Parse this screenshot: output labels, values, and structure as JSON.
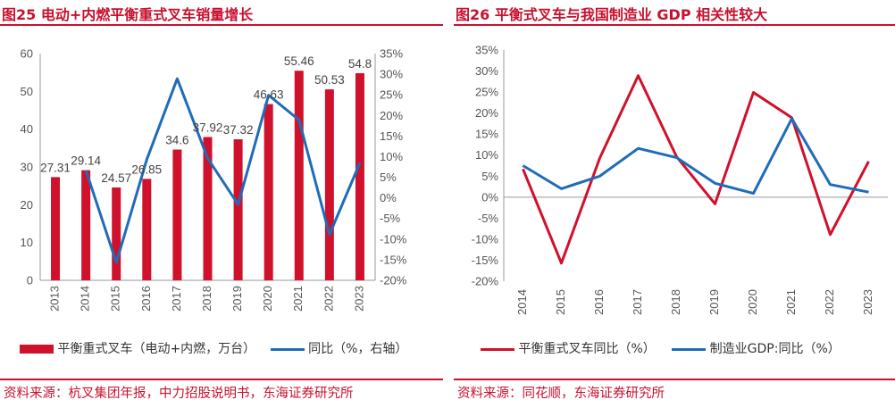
{
  "left": {
    "title": "图25  电动+内燃平衡重式叉车销量增长",
    "source": "资料来源：杭叉集团年报，中力招股说明书，东海证券研究所",
    "legend": [
      "平衡重式叉车（电动+内燃，万台）",
      "同比（%，右轴）"
    ]
  },
  "right": {
    "title": "图26  平衡式叉车与我国制造业 GDP 相关性较大",
    "source": "资料来源：同花顺，东海证券研究所",
    "legend": [
      "平衡重式叉车同比（%）",
      "制造业GDP:同比（%）"
    ]
  },
  "colors": {
    "red": "#d0112b",
    "blue": "#1f6cb8"
  },
  "chart_data": [
    {
      "type": "bar",
      "categories": [
        "2013",
        "2014",
        "2015",
        "2016",
        "2017",
        "2018",
        "2019",
        "2020",
        "2021",
        "2022",
        "2023"
      ],
      "ylim": [
        0,
        60
      ],
      "yticks": [
        0,
        10,
        20,
        30,
        40,
        50,
        60
      ],
      "y2lim": [
        -20,
        35
      ],
      "y2ticks": [
        "35%",
        "30%",
        "25%",
        "20%",
        "15%",
        "10%",
        "5%",
        "0%",
        "-5%",
        "-10%",
        "-15%",
        "-20%"
      ],
      "series": [
        {
          "name": "平衡重式叉车（电动+内燃，万台）",
          "type": "bar",
          "axis": "left",
          "values": [
            27.31,
            29.14,
            24.57,
            26.85,
            34.6,
            37.92,
            37.32,
            46.63,
            55.46,
            50.53,
            54.8
          ],
          "labels": [
            "27.31",
            "29.14",
            "24.57",
            "26.85",
            "34.6",
            "37.92",
            "37.32",
            "46.63",
            "55.46",
            "50.53",
            "54.8"
          ]
        },
        {
          "name": "同比（%，右轴）",
          "type": "line",
          "axis": "right",
          "x": [
            "2014",
            "2015",
            "2016",
            "2017",
            "2018",
            "2019",
            "2020",
            "2021",
            "2022",
            "2023"
          ],
          "values": [
            6.7,
            -15.7,
            9.3,
            28.9,
            9.6,
            -1.6,
            24.9,
            18.9,
            -8.9,
            8.5
          ]
        }
      ],
      "legend_position": "bottom"
    },
    {
      "type": "line",
      "x": [
        "2014",
        "2015",
        "2016",
        "2017",
        "2018",
        "2019",
        "2020",
        "2021",
        "2022",
        "2023"
      ],
      "ylim": [
        -20,
        35
      ],
      "yticks": [
        "35%",
        "30%",
        "25%",
        "20%",
        "15%",
        "10%",
        "5%",
        "0%",
        "-5%",
        "-10%",
        "-15%",
        "-20%"
      ],
      "series": [
        {
          "name": "平衡重式叉车同比（%）",
          "values": [
            6.7,
            -15.7,
            9.3,
            28.9,
            9.6,
            -1.6,
            24.9,
            18.9,
            -8.9,
            8.5
          ]
        },
        {
          "name": "制造业GDP:同比（%）",
          "values": [
            7.5,
            2.0,
            5.0,
            11.6,
            9.4,
            3.3,
            0.9,
            18.7,
            3.0,
            1.2
          ]
        }
      ],
      "legend_position": "bottom"
    }
  ]
}
